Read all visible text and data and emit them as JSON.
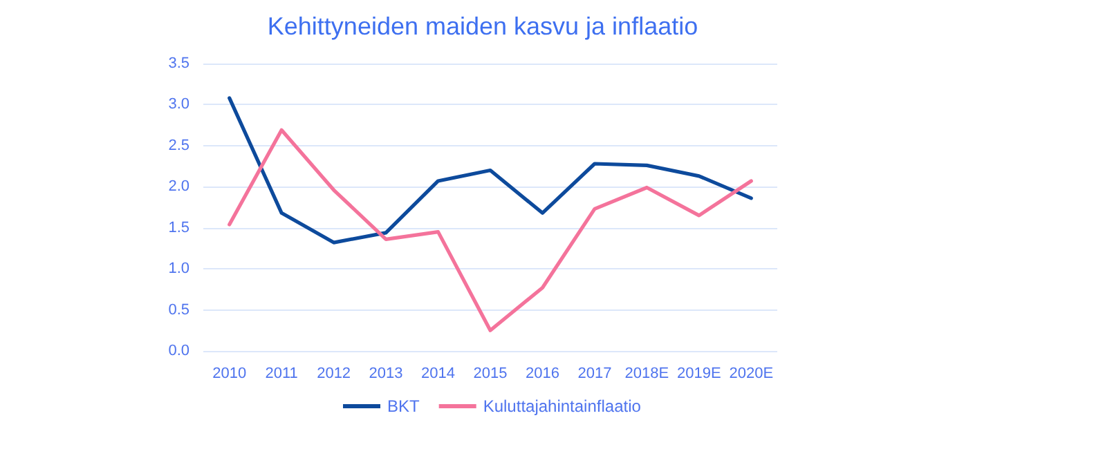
{
  "chart_data": {
    "type": "line",
    "title": "Kehittyneiden maiden kasvu ja inflaatio",
    "categories": [
      "2010",
      "2011",
      "2012",
      "2013",
      "2014",
      "2015",
      "2016",
      "2017",
      "2018E",
      "2019E",
      "2020E"
    ],
    "series": [
      {
        "name": "BKT",
        "color": "#0d4a9c",
        "values": [
          3.08,
          1.68,
          1.32,
          1.44,
          2.07,
          2.2,
          1.68,
          2.28,
          2.26,
          2.13,
          1.86
        ]
      },
      {
        "name": "Kuluttajahintainflaatio",
        "color": "#f4739b",
        "values": [
          1.54,
          2.69,
          1.96,
          1.36,
          1.45,
          0.25,
          0.77,
          1.73,
          1.99,
          1.65,
          2.07
        ]
      }
    ],
    "ylim": [
      0,
      3.5
    ],
    "yticks": [
      {
        "value": 0,
        "label": "0.0"
      },
      {
        "value": 0.5,
        "label": "0.5"
      },
      {
        "value": 1,
        "label": "1.0"
      },
      {
        "value": 1.5,
        "label": "1.5"
      },
      {
        "value": 2,
        "label": "2.0"
      },
      {
        "value": 2.5,
        "label": "2.5"
      },
      {
        "value": 3,
        "label": "3.0"
      },
      {
        "value": 3.5,
        "label": "3.5"
      }
    ],
    "grid": "y",
    "legend": "bottom",
    "marker": "none"
  }
}
